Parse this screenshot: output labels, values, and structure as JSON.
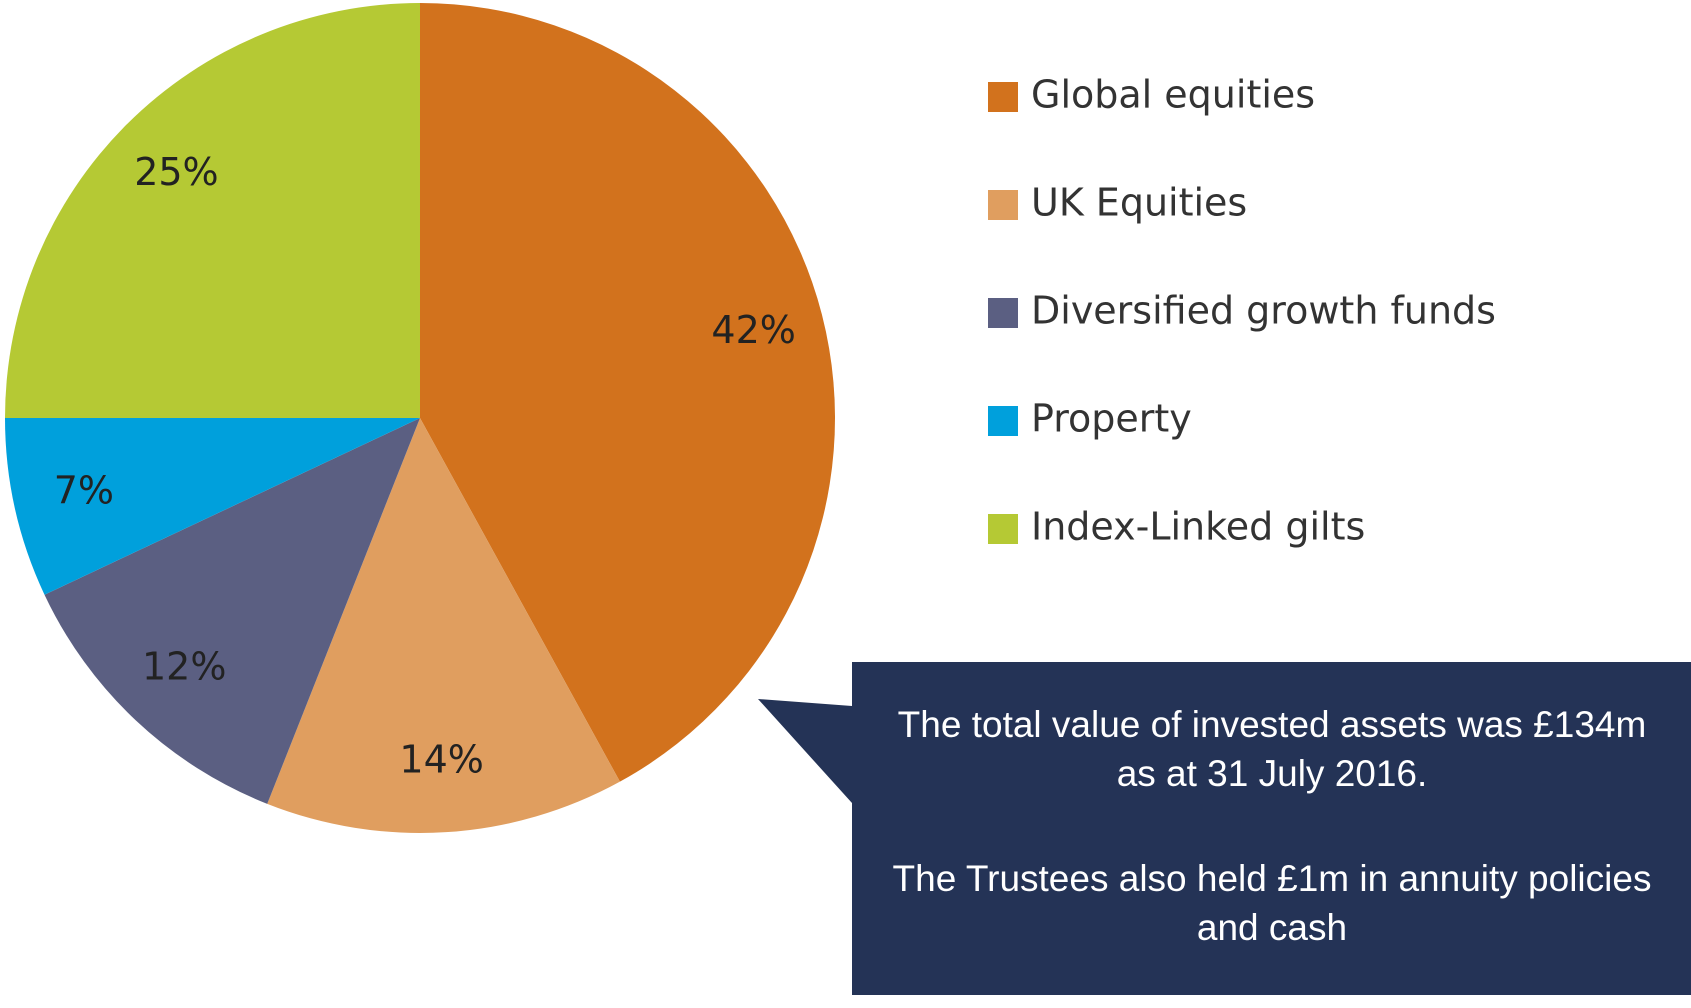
{
  "chart_data": {
    "type": "pie",
    "categories": [
      "Global equities",
      "UK Equities",
      "Diversified growth funds",
      "Property",
      "Index-Linked gilts"
    ],
    "values": [
      42,
      14,
      12,
      7,
      25
    ],
    "value_labels": [
      "42%",
      "14%",
      "12%",
      "7%",
      "25%"
    ],
    "colors": [
      "#d2721d",
      "#e09e5f",
      "#5b5f82",
      "#00a0dc",
      "#b5c934"
    ],
    "legend": "right",
    "annotations": [
      "The total value of invested assets was £134m as at 31 July 2016.",
      "The Trustees also held £1m in annuity policies and cash"
    ]
  }
}
